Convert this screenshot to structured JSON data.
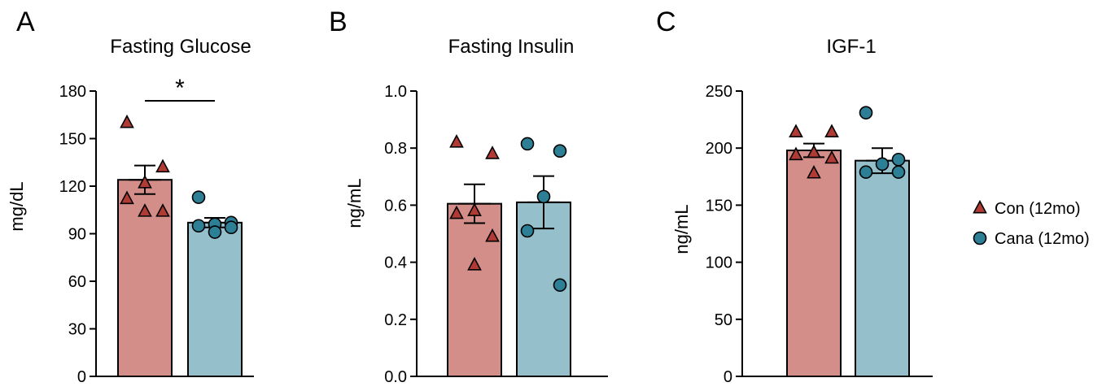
{
  "legend": [
    {
      "label": "Con (12mo)",
      "marker": "triangle",
      "color": "#B03A34"
    },
    {
      "label": "Cana (12mo)",
      "marker": "circle",
      "color": "#2D7F96"
    }
  ],
  "colors": {
    "con_bar": "#D38E8A",
    "cana_bar": "#94BFCB",
    "con_marker": "#B03A34",
    "cana_marker": "#2D7F96"
  },
  "chart_data": [
    {
      "type": "bar",
      "panel": "A",
      "title": "Fasting Glucose",
      "ylabel": "mg/dL",
      "ylim": [
        0,
        180
      ],
      "yticks": [
        0,
        30,
        60,
        90,
        120,
        150,
        180
      ],
      "ytick_labels": [
        "0",
        "30",
        "60",
        "90",
        "120",
        "150",
        "180"
      ],
      "groups": [
        {
          "name": "Con (12mo)",
          "mean": 124,
          "sem": 9,
          "points": [
            160,
            132,
            122,
            112,
            104,
            104
          ]
        },
        {
          "name": "Cana (12mo)",
          "mean": 97,
          "sem": 3,
          "points": [
            113,
            97,
            96,
            95,
            94,
            91
          ]
        }
      ],
      "significance": "*"
    },
    {
      "type": "bar",
      "panel": "B",
      "title": "Fasting Insulin",
      "ylabel": "ng/mL",
      "ylim": [
        0,
        1.0
      ],
      "yticks": [
        0,
        0.2,
        0.4,
        0.6,
        0.8,
        1.0
      ],
      "ytick_labels": [
        "0.0",
        "0.2",
        "0.4",
        "0.6",
        "0.8",
        "1.0"
      ],
      "groups": [
        {
          "name": "Con (12mo)",
          "mean": 0.605,
          "sem": 0.068,
          "points": [
            0.82,
            0.78,
            0.58,
            0.57,
            0.49,
            0.39
          ]
        },
        {
          "name": "Cana (12mo)",
          "mean": 0.61,
          "sem": 0.092,
          "points": [
            0.815,
            0.79,
            0.63,
            0.51,
            0.32
          ]
        }
      ]
    },
    {
      "type": "bar",
      "panel": "C",
      "title": "IGF-1",
      "ylabel": "ng/mL",
      "ylim": [
        0,
        250
      ],
      "yticks": [
        0,
        50,
        100,
        150,
        200,
        250
      ],
      "ytick_labels": [
        "0",
        "50",
        "100",
        "150",
        "200",
        "250"
      ],
      "groups": [
        {
          "name": "Con (12mo)",
          "mean": 198,
          "sem": 6,
          "points": [
            214,
            214,
            196,
            194,
            191,
            178
          ]
        },
        {
          "name": "Cana (12mo)",
          "mean": 189,
          "sem": 11,
          "points": [
            231,
            190,
            186,
            179,
            179
          ]
        }
      ]
    }
  ]
}
